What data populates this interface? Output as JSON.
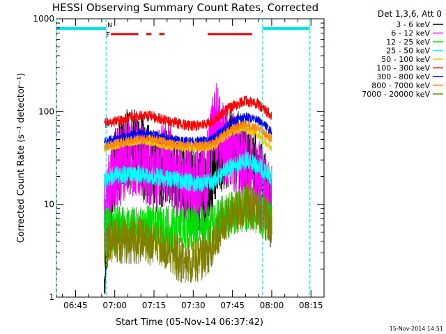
{
  "chart_data": {
    "type": "line",
    "title": "HESSI Observing Summary Count Rates, Corrected",
    "xlabel": "Start Time (05-Nov-14 06:37:42)",
    "ylabel": "Corrected Count Rate (s⁻¹ detector⁻¹)",
    "yscale": "log",
    "ylim": [
      1,
      1000
    ],
    "xlim": [
      "06:37:42",
      "08:20:00"
    ],
    "xticks": [
      "06:45",
      "07:00",
      "07:15",
      "07:30",
      "07:45",
      "08:00",
      "08:15"
    ],
    "yticks": [
      "1",
      "10",
      "100",
      "1000"
    ],
    "legend_title": "Det 1,3,6, Att 0",
    "legend_placement": "right",
    "timestamp": "15-Nov-2014 14:51",
    "markers": {
      "night_label": "N",
      "flare_label": "F",
      "night_intervals": [
        [
          "06:37:42",
          "06:56:40"
        ],
        [
          "07:56:30",
          "08:14:30"
        ]
      ],
      "flare_intervals": [
        [
          "06:58:30",
          "07:09:00"
        ],
        [
          "07:12:00",
          "07:14:00"
        ],
        [
          "07:17:00",
          "07:19:00"
        ],
        [
          "07:35:30",
          "07:52:30"
        ]
      ],
      "night_color": "#00e5e5",
      "flare_color": "#e00000"
    },
    "times": [
      "06:56:00",
      "07:00:00",
      "07:05:00",
      "07:10:00",
      "07:15:00",
      "07:20:00",
      "07:25:00",
      "07:30:00",
      "07:35:00",
      "07:38:00",
      "07:41:00",
      "07:45:00",
      "07:50:00",
      "07:55:00",
      "07:58:00",
      "08:00:00"
    ],
    "series": [
      {
        "name": "3 - 6 keV",
        "color": "#000000",
        "values": [
          2.5,
          25,
          40,
          35,
          22,
          25,
          18,
          15,
          12,
          30,
          35,
          42,
          30,
          20,
          12,
          8
        ]
      },
      {
        "name": "6 - 12 keV",
        "color": "#ff00ff",
        "values": [
          8,
          22,
          35,
          30,
          24,
          28,
          18,
          16,
          20,
          90,
          45,
          40,
          28,
          18,
          12,
          10
        ]
      },
      {
        "name": "12 - 25 keV",
        "color": "#00e000",
        "values": [
          5,
          5.5,
          5.5,
          5.5,
          5.5,
          5.5,
          5.5,
          5.5,
          5.5,
          6,
          7,
          8,
          9,
          8,
          7,
          6
        ]
      },
      {
        "name": "25 - 50 keV",
        "color": "#00ffff",
        "values": [
          18,
          21,
          21,
          21,
          20,
          19,
          18,
          17,
          17,
          18,
          22,
          26,
          30,
          26,
          22,
          20
        ]
      },
      {
        "name": "50 - 100 keV",
        "color": "#f0c800",
        "values": [
          40,
          42,
          46,
          48,
          46,
          42,
          40,
          40,
          40,
          42,
          50,
          60,
          65,
          55,
          45,
          40
        ]
      },
      {
        "name": "100 - 300 keV",
        "color": "#ff0000",
        "values": [
          75,
          78,
          85,
          90,
          88,
          80,
          73,
          70,
          73,
          80,
          95,
          115,
          130,
          120,
          100,
          90
        ]
      },
      {
        "name": "300 - 800 keV",
        "color": "#0000ff",
        "values": [
          47,
          50,
          55,
          58,
          56,
          52,
          48,
          48,
          48,
          52,
          62,
          78,
          88,
          80,
          68,
          60
        ]
      },
      {
        "name": "800 - 7000 keV",
        "color": "#ff8c00",
        "values": [
          42,
          45,
          48,
          52,
          50,
          46,
          43,
          43,
          43,
          46,
          55,
          66,
          72,
          66,
          56,
          50
        ]
      },
      {
        "name": "7000 - 20000 keV",
        "color": "#808000",
        "values": [
          3.5,
          4,
          4,
          4,
          3.8,
          3.5,
          2.5,
          2.4,
          2.8,
          4,
          6,
          8,
          10,
          9,
          7,
          6
        ]
      }
    ]
  }
}
